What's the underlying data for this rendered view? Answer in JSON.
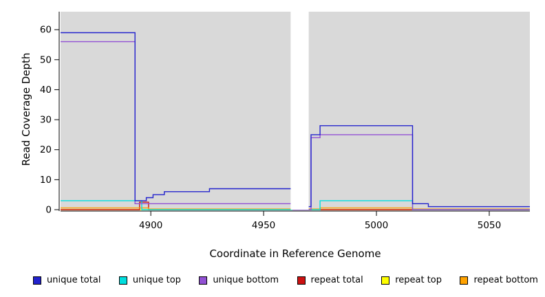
{
  "chart_data": {
    "type": "line",
    "title": "",
    "xlabel": "Coordinate in Reference Genome",
    "ylabel": "Read Coverage Depth",
    "xlim": [
      4860,
      5068
    ],
    "ylim": [
      0,
      66
    ],
    "xticks": [
      4900,
      4950,
      5000,
      5050
    ],
    "yticks": [
      0,
      10,
      20,
      30,
      40,
      50,
      60
    ],
    "plot_bg": "#d9d9d9",
    "gap_band": {
      "x0": 4962,
      "x1": 4970,
      "color": "#ffffff"
    },
    "series": [
      {
        "name": "repeat top",
        "color": "#ffff00",
        "points": [
          [
            4860,
            0
          ],
          [
            5068,
            0
          ]
        ]
      },
      {
        "name": "repeat total",
        "color": "#cc1111",
        "points": [
          [
            4860,
            0
          ],
          [
            4895,
            0
          ],
          [
            4895,
            2.5
          ],
          [
            4899,
            2.5
          ],
          [
            4899,
            0
          ],
          [
            5068,
            0
          ]
        ]
      },
      {
        "name": "repeat bottom",
        "color": "#ffa200",
        "points": [
          [
            4860,
            0.6
          ],
          [
            4899,
            0.6
          ],
          [
            4899,
            0.2
          ],
          [
            4975,
            0.2
          ],
          [
            4975,
            0.6
          ],
          [
            5016,
            0.6
          ],
          [
            5016,
            0.2
          ],
          [
            5068,
            0.2
          ]
        ]
      },
      {
        "name": "unique top",
        "color": "#00dede",
        "points": [
          [
            4860,
            3
          ],
          [
            4896,
            3
          ],
          [
            4896,
            0
          ],
          [
            4975,
            0
          ],
          [
            4975,
            3
          ],
          [
            5016,
            3
          ],
          [
            5016,
            0
          ],
          [
            5068,
            0
          ]
        ]
      },
      {
        "name": "unique bottom",
        "color": "#9251d4",
        "points": [
          [
            4860,
            56
          ],
          [
            4893,
            56
          ],
          [
            4893,
            2
          ],
          [
            4963,
            2
          ],
          [
            4963,
            0
          ],
          [
            4971,
            0
          ],
          [
            4971,
            24
          ],
          [
            4975,
            24
          ],
          [
            4975,
            25
          ],
          [
            5016,
            25
          ],
          [
            5016,
            0
          ],
          [
            5068,
            0
          ]
        ]
      },
      {
        "name": "unique total",
        "color": "#2222cd",
        "points": [
          [
            4860,
            59
          ],
          [
            4893,
            59
          ],
          [
            4893,
            3
          ],
          [
            4898,
            3
          ],
          [
            4898,
            4
          ],
          [
            4901,
            4
          ],
          [
            4901,
            5
          ],
          [
            4906,
            5
          ],
          [
            4906,
            6
          ],
          [
            4926,
            6
          ],
          [
            4926,
            7
          ],
          [
            4963,
            7
          ],
          [
            4963,
            1
          ],
          [
            4971,
            1
          ],
          [
            4971,
            25
          ],
          [
            4975,
            25
          ],
          [
            4975,
            28
          ],
          [
            5016,
            28
          ],
          [
            5016,
            2
          ],
          [
            5023,
            2
          ],
          [
            5023,
            1
          ],
          [
            5068,
            1
          ]
        ]
      }
    ],
    "legend": [
      {
        "label": "unique total",
        "color": "#2222cd"
      },
      {
        "label": "unique top",
        "color": "#00dede"
      },
      {
        "label": "unique bottom",
        "color": "#9251d4"
      },
      {
        "label": "repeat total",
        "color": "#cc1111"
      },
      {
        "label": "repeat top",
        "color": "#ffff00"
      },
      {
        "label": "repeat bottom",
        "color": "#ffa200"
      }
    ],
    "legend_position": "bottom",
    "grid": false
  }
}
